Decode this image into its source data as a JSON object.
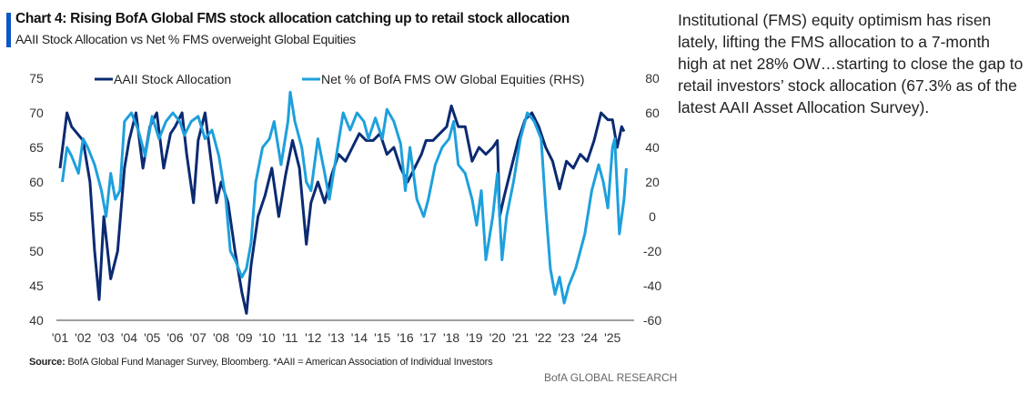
{
  "chart_data": {
    "type": "line",
    "title": "Chart 4: Rising BofA Global FMS stock allocation catching up to retail stock allocation",
    "subtitle": "AAII Stock Allocation vs Net % FMS overweight Global Equities",
    "x_ticks": [
      "'01",
      "'02",
      "'03",
      "'04",
      "'05",
      "'06",
      "'07",
      "'08",
      "'09",
      "'10",
      "'11",
      "'12",
      "'13",
      "'14",
      "'15",
      "'16",
      "'17",
      "'18",
      "'19",
      "'20",
      "'21",
      "'22",
      "'23",
      "'24",
      "'25"
    ],
    "y_left": {
      "ticks": [
        "75",
        "70",
        "65",
        "60",
        "55",
        "50",
        "45",
        "40"
      ],
      "range": [
        40,
        75
      ]
    },
    "y_right": {
      "ticks": [
        "80",
        "60",
        "40",
        "20",
        "0",
        "-20",
        "-40",
        "-60"
      ],
      "range": [
        -60,
        80
      ]
    },
    "legend": {
      "placement": "top",
      "entries": [
        "AAII Stock Allocation",
        "Net % of BofA FMS OW Global Equities (RHS)"
      ]
    },
    "series": [
      {
        "name": "AAII Stock Allocation",
        "axis": "left",
        "color": "#0b2a72",
        "x": [
          2001.0,
          2001.3,
          2001.5,
          2002.0,
          2002.3,
          2002.5,
          2002.7,
          2002.9,
          2003.2,
          2003.5,
          2003.8,
          2004.0,
          2004.3,
          2004.6,
          2004.9,
          2005.2,
          2005.5,
          2005.8,
          2006.0,
          2006.3,
          2006.5,
          2006.8,
          2007.0,
          2007.3,
          2007.6,
          2007.8,
          2008.0,
          2008.3,
          2008.6,
          2008.9,
          2009.1,
          2009.3,
          2009.6,
          2009.9,
          2010.2,
          2010.5,
          2010.8,
          2011.1,
          2011.4,
          2011.7,
          2011.9,
          2012.2,
          2012.5,
          2012.8,
          2013.1,
          2013.4,
          2013.7,
          2014.0,
          2014.3,
          2014.6,
          2014.9,
          2015.2,
          2015.5,
          2015.8,
          2016.1,
          2016.4,
          2016.7,
          2016.9,
          2017.2,
          2017.5,
          2017.8,
          2018.0,
          2018.3,
          2018.6,
          2018.9,
          2019.2,
          2019.5,
          2019.8,
          2020.0,
          2020.1,
          2020.3,
          2020.6,
          2020.9,
          2021.2,
          2021.5,
          2021.8,
          2022.1,
          2022.4,
          2022.7,
          2023.0,
          2023.3,
          2023.6,
          2023.9,
          2024.2,
          2024.5,
          2024.8,
          2025.0,
          2025.2,
          2025.4,
          2025.5
        ],
        "values": [
          62,
          70,
          68,
          66,
          60,
          50,
          43,
          55,
          46,
          50,
          62,
          66,
          70,
          62,
          68,
          70,
          62,
          67,
          68,
          70,
          64,
          57,
          66,
          70,
          62,
          57,
          60,
          57,
          50,
          44,
          41,
          48,
          55,
          58,
          62,
          55,
          61,
          66,
          62,
          51,
          57,
          60,
          57,
          61,
          64,
          63,
          65,
          67,
          66,
          66,
          67,
          64,
          65,
          62,
          60,
          62,
          64,
          66,
          66,
          67,
          68,
          71,
          68,
          68,
          63,
          65,
          64,
          65,
          66,
          55,
          58,
          62,
          66,
          69,
          70,
          68,
          65,
          63,
          59,
          63,
          62,
          64,
          63,
          66,
          70,
          69,
          69,
          65,
          68,
          67.3
        ]
      },
      {
        "name": "Net % of BofA FMS OW Global Equities (RHS)",
        "axis": "right",
        "color": "#1ea0dc",
        "x": [
          2001.1,
          2001.3,
          2001.5,
          2001.8,
          2002.0,
          2002.2,
          2002.5,
          2002.8,
          2003.0,
          2003.2,
          2003.4,
          2003.6,
          2003.8,
          2004.1,
          2004.4,
          2004.7,
          2005.0,
          2005.3,
          2005.6,
          2005.9,
          2006.2,
          2006.4,
          2006.7,
          2007.0,
          2007.3,
          2007.6,
          2007.9,
          2008.2,
          2008.4,
          2008.6,
          2008.9,
          2009.1,
          2009.3,
          2009.5,
          2009.8,
          2010.1,
          2010.3,
          2010.6,
          2010.9,
          2011.0,
          2011.2,
          2011.5,
          2011.7,
          2011.9,
          2012.2,
          2012.5,
          2012.7,
          2013.0,
          2013.3,
          2013.6,
          2013.9,
          2014.2,
          2014.4,
          2014.7,
          2015.0,
          2015.2,
          2015.5,
          2015.8,
          2016.0,
          2016.2,
          2016.5,
          2016.8,
          2017.0,
          2017.3,
          2017.6,
          2017.9,
          2018.1,
          2018.3,
          2018.6,
          2018.9,
          2019.1,
          2019.3,
          2019.5,
          2019.8,
          2020.0,
          2020.2,
          2020.4,
          2020.7,
          2021.0,
          2021.3,
          2021.6,
          2021.9,
          2022.1,
          2022.3,
          2022.5,
          2022.7,
          2022.9,
          2023.1,
          2023.4,
          2023.6,
          2023.8,
          2024.1,
          2024.4,
          2024.6,
          2024.8,
          2025.0,
          2025.1,
          2025.3,
          2025.5,
          2025.6
        ],
        "values": [
          20,
          40,
          35,
          25,
          45,
          40,
          30,
          15,
          0,
          25,
          10,
          15,
          55,
          60,
          50,
          35,
          58,
          45,
          55,
          60,
          55,
          47,
          55,
          58,
          45,
          50,
          35,
          10,
          -20,
          -25,
          -35,
          -30,
          -15,
          20,
          40,
          45,
          55,
          30,
          55,
          72,
          55,
          40,
          20,
          15,
          45,
          25,
          10,
          35,
          60,
          50,
          60,
          55,
          45,
          57,
          45,
          62,
          55,
          42,
          15,
          40,
          10,
          0,
          10,
          30,
          40,
          45,
          55,
          30,
          25,
          10,
          -5,
          15,
          -25,
          0,
          25,
          -25,
          0,
          20,
          45,
          60,
          55,
          45,
          5,
          -30,
          -45,
          -35,
          -50,
          -40,
          -30,
          -20,
          -10,
          15,
          30,
          20,
          5,
          40,
          45,
          -10,
          10,
          28
        ]
      }
    ],
    "source": "Source:",
    "source_text": "BofA Global Fund Manager Survey, Bloomberg. *AAII = American Association of Individual Investors",
    "brand": "BofA GLOBAL RESEARCH"
  },
  "commentary": "Institutional (FMS) equity optimism has risen lately, lifting the FMS allocation to a 7-month high at net 28% OW…starting to close the gap to retail investors’ stock allocation (67.3% as of the latest AAII Asset Allocation Survey)."
}
